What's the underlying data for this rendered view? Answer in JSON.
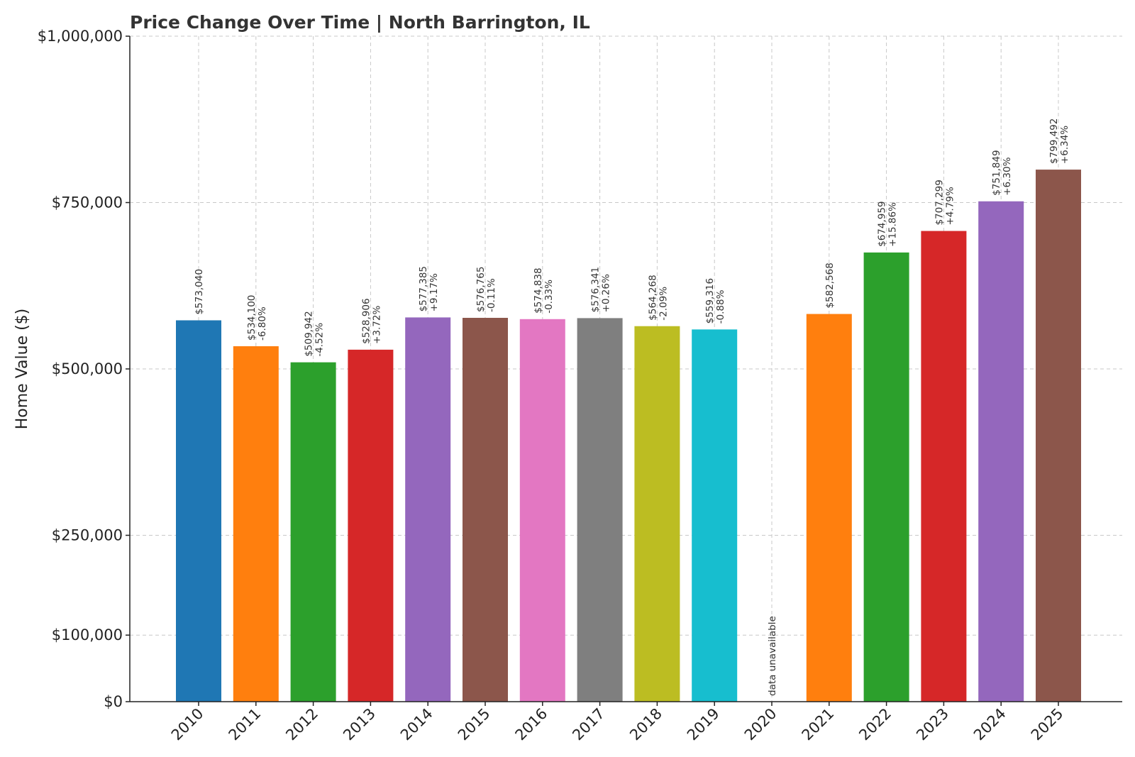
{
  "chart_data": {
    "type": "bar",
    "title": "Price Change Over Time | North Barrington, IL",
    "xlabel": "",
    "ylabel": "Home Value ($)",
    "ylim": [
      0,
      1000000
    ],
    "yticks": [
      0,
      100000,
      250000,
      500000,
      750000,
      1000000
    ],
    "ytick_labels": [
      "$0",
      "$100,000",
      "$250,000",
      "$500,000",
      "$750,000",
      "$1,000,000"
    ],
    "grid": true,
    "categories": [
      "2010",
      "2011",
      "2012",
      "2013",
      "2014",
      "2015",
      "2016",
      "2017",
      "2018",
      "2019",
      "2020",
      "2021",
      "2022",
      "2023",
      "2024",
      "2025"
    ],
    "values": [
      573040,
      534100,
      509942,
      528906,
      577385,
      576765,
      574838,
      576341,
      564268,
      559316,
      null,
      582568,
      674959,
      707299,
      751849,
      799492
    ],
    "value_labels": [
      "$573,040",
      "$534,100",
      "$509,942",
      "$528,906",
      "$577,385",
      "$576,765",
      "$574,838",
      "$576,341",
      "$564,268",
      "$559,316",
      "",
      "$582,568",
      "$674,959",
      "$707,299",
      "$751,849",
      "$799,492"
    ],
    "change_labels": [
      "",
      "-6.80%",
      "-4.52%",
      "+3.72%",
      "+9.17%",
      "-0.11%",
      "-0.33%",
      "+0.26%",
      "-2.09%",
      "-0.88%",
      "",
      "",
      "+15.86%",
      "+4.79%",
      "+6.30%",
      "+6.34%"
    ],
    "missing_label": "data unavailable",
    "colors": [
      "#1f77b4",
      "#ff7f0e",
      "#2ca02c",
      "#d62728",
      "#9467bd",
      "#8c564b",
      "#e377c2",
      "#7f7f7f",
      "#bcbd22",
      "#17becf",
      "#1f77b4",
      "#ff7f0e",
      "#2ca02c",
      "#d62728",
      "#9467bd",
      "#8c564b"
    ]
  }
}
